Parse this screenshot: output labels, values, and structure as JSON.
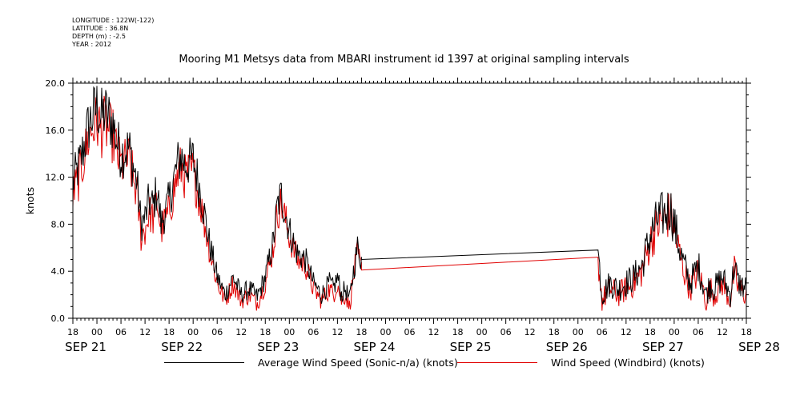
{
  "meta": {
    "longitude": "LONGITUDE : 122W(-122)",
    "latitude": "LATITUDE : 36.8N",
    "depth": "DEPTH (m) : -2.5",
    "year": "YEAR : 2012"
  },
  "colors": {
    "series1": "#000000",
    "series2": "#e00000"
  },
  "chart_data": {
    "type": "line",
    "title": "Mooring M1 Metsys data from MBARI instrument id 1397 at original sampling intervals",
    "ylabel": "knots",
    "xlabel": "",
    "ylim": [
      0,
      20
    ],
    "yticks": [
      "0.0",
      "4.0",
      "8.0",
      "12.0",
      "16.0",
      "20.0"
    ],
    "xlim_hours": [
      0,
      168
    ],
    "hour_ticks": [
      "18",
      "00",
      "06",
      "12",
      "18",
      "00",
      "06",
      "12",
      "18",
      "00",
      "06",
      "12",
      "18",
      "00",
      "06",
      "12",
      "18",
      "00",
      "06",
      "12",
      "18",
      "00",
      "06",
      "12",
      "18",
      "00",
      "06",
      "12",
      "18"
    ],
    "day_labels": [
      "SEP 21",
      "SEP 22",
      "SEP 23",
      "SEP 24",
      "SEP 25",
      "SEP 26",
      "SEP 27",
      "SEP 28"
    ],
    "gap": {
      "start": 72,
      "end": 131,
      "series1": [
        5.0,
        5.8
      ],
      "series2": [
        4.1,
        5.2
      ]
    },
    "series": [
      {
        "name": "Average Wind Speed (Sonic-n/a) (knots)",
        "x": [
          0,
          2,
          4,
          6,
          7,
          8,
          10,
          11,
          12,
          14,
          16,
          17,
          18,
          19,
          20,
          21,
          22,
          24,
          26,
          27,
          28,
          30,
          32,
          34,
          36,
          38,
          40,
          42,
          44,
          46,
          48,
          50,
          51,
          52,
          54,
          55,
          56,
          58,
          60,
          62,
          64,
          65,
          66,
          67,
          68,
          69,
          70,
          71,
          72,
          131,
          132,
          134,
          136,
          138,
          140,
          142,
          144,
          146,
          148,
          149,
          150,
          151,
          152,
          154,
          156,
          158,
          159,
          160,
          162,
          164,
          165,
          166,
          168
        ],
        "values": [
          11.5,
          13.5,
          16.5,
          18.0,
          17.0,
          17.5,
          16.5,
          15.0,
          14.0,
          14.5,
          11.5,
          8.0,
          8.5,
          10.0,
          9.5,
          11.0,
          8.0,
          10.0,
          13.0,
          13.8,
          13.0,
          13.5,
          10.5,
          6.5,
          3.5,
          2.0,
          3.5,
          2.0,
          2.5,
          1.8,
          3.5,
          6.5,
          9.5,
          10.5,
          7.5,
          6.5,
          5.5,
          5.0,
          3.0,
          2.0,
          3.0,
          2.5,
          3.5,
          2.0,
          2.5,
          1.5,
          4.0,
          6.0,
          5.0,
          5.8,
          2.0,
          3.0,
          2.5,
          3.0,
          3.5,
          4.5,
          7.0,
          8.5,
          9.0,
          9.5,
          8.0,
          6.5,
          5.0,
          3.0,
          4.5,
          2.0,
          3.0,
          2.5,
          3.5,
          2.0,
          4.5,
          3.0,
          2.5
        ]
      },
      {
        "name": "Wind Speed (Windbird) (knots)",
        "x": [
          0,
          2,
          4,
          6,
          7,
          8,
          10,
          11,
          12,
          14,
          16,
          17,
          18,
          19,
          20,
          21,
          22,
          24,
          26,
          27,
          28,
          30,
          32,
          34,
          36,
          38,
          40,
          42,
          44,
          46,
          48,
          50,
          51,
          52,
          54,
          55,
          56,
          58,
          60,
          62,
          64,
          65,
          66,
          67,
          68,
          69,
          70,
          71,
          72,
          131,
          132,
          134,
          136,
          138,
          140,
          142,
          144,
          146,
          148,
          149,
          150,
          151,
          152,
          154,
          156,
          158,
          159,
          160,
          162,
          164,
          165,
          166,
          168
        ],
        "values": [
          10.5,
          12.5,
          15.5,
          16.8,
          16.0,
          16.5,
          15.5,
          14.0,
          13.0,
          13.5,
          10.5,
          7.0,
          7.5,
          9.0,
          8.5,
          10.0,
          7.5,
          9.0,
          12.0,
          12.8,
          12.0,
          12.5,
          9.5,
          6.0,
          3.0,
          1.5,
          3.0,
          1.5,
          2.0,
          1.3,
          3.0,
          6.0,
          9.0,
          9.8,
          7.0,
          6.0,
          5.0,
          4.5,
          2.5,
          1.5,
          2.5,
          2.0,
          3.0,
          1.5,
          2.0,
          1.0,
          3.5,
          5.5,
          4.1,
          5.2,
          1.5,
          2.5,
          2.0,
          2.5,
          3.0,
          4.0,
          6.5,
          8.0,
          8.5,
          9.0,
          7.5,
          6.0,
          4.5,
          2.5,
          4.0,
          1.5,
          2.5,
          2.0,
          3.0,
          1.5,
          4.0,
          2.5,
          2.0
        ]
      }
    ]
  }
}
